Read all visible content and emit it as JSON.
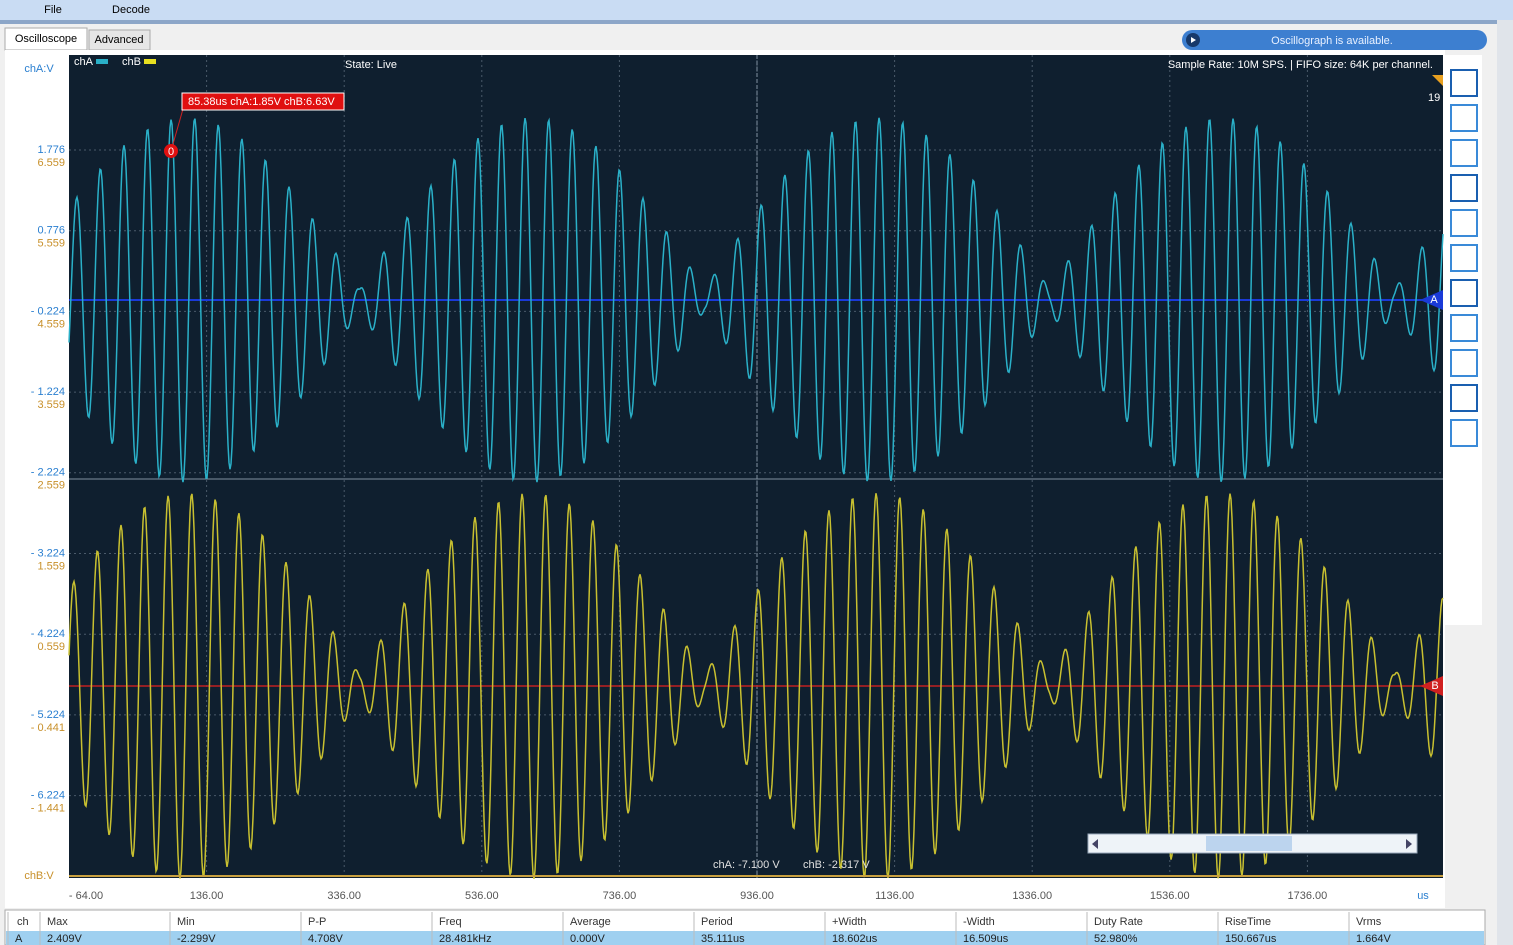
{
  "menu": [
    "File",
    "Decode"
  ],
  "tabs": [
    "Oscilloscope",
    "Advanced"
  ],
  "status": "Oscillograph  is available.",
  "plot": {
    "y_label_a": "chA:V",
    "y_label_b": "chB:V",
    "legend": [
      "chA",
      "chB"
    ],
    "state": "State: Live",
    "info": "Sample Rate: 10M SPS. | FIFO size: 64K per channel.",
    "cursor": {
      "label": "85.38us chA:1.85V  chB:6.63V",
      "marker": "0"
    },
    "edge_text": "19",
    "a_ticks": [
      "1.776",
      "0.776",
      "- 0.224",
      "- 1.224",
      "- 2.224",
      "- 3.224",
      "- 4.224",
      "- 5.224",
      "- 6.224"
    ],
    "b_ticks": [
      "6.559",
      "5.559",
      "4.559",
      "3.559",
      "2.559",
      "1.559",
      "0.559",
      "- 0.441",
      "- 1.441"
    ],
    "x_ticks": [
      "- 64.00",
      "136.00",
      "336.00",
      "536.00",
      "736.00",
      "936.00",
      "1136.00",
      "1336.00",
      "1536.00",
      "1736.00"
    ],
    "x_unit": "us",
    "markers": [
      "A",
      "B"
    ],
    "readout": [
      "chA: -7.100 V",
      "chB: -2.317 V"
    ]
  },
  "table": {
    "header": [
      "ch",
      "Max",
      "Min",
      "P-P",
      "Freq",
      "Average",
      "Period",
      "+Width",
      "-Width",
      "Duty Rate",
      "RiseTime",
      "Vrms"
    ],
    "rows": [
      [
        "A",
        "2.409V",
        "-2.299V",
        "4.708V",
        "28.481kHz",
        "0.000V",
        "35.111us",
        "18.602us",
        "16.509us",
        "52.980%",
        "150.667us",
        "1.664V"
      ]
    ]
  }
}
